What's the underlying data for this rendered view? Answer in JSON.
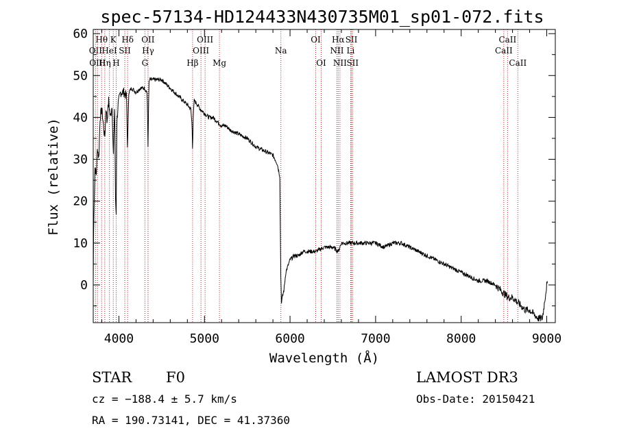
{
  "chart_data": {
    "type": "line",
    "title": "spec-57134-HD124433N430735M01_sp01-072.fits",
    "xlabel": "Wavelength (Å)",
    "ylabel": "Flux (relative)",
    "xlim": [
      3700,
      9100
    ],
    "ylim": [
      -9,
      61
    ],
    "xticks": [
      4000,
      5000,
      6000,
      7000,
      8000,
      9000
    ],
    "yticks": [
      0,
      10,
      20,
      30,
      40,
      50,
      60
    ],
    "line_color": "#000000",
    "marker_color": "#b22222",
    "grid": false,
    "spectrum_anchors": {
      "x": [
        3700,
        3705,
        3720,
        3735,
        3750,
        3765,
        3780,
        3800,
        3820,
        3835,
        3850,
        3860,
        3880,
        3890,
        3900,
        3920,
        3935,
        3950,
        3960,
        3968,
        3975,
        3990,
        4020,
        4060,
        4090,
        4101,
        4115,
        4150,
        4200,
        4250,
        4300,
        4330,
        4340,
        4350,
        4360,
        4400,
        4450,
        4500,
        4550,
        4600,
        4650,
        4700,
        4750,
        4800,
        4840,
        4855,
        4861,
        4868,
        4880,
        4920,
        4950,
        5000,
        5050,
        5100,
        5150,
        5200,
        5250,
        5300,
        5400,
        5500,
        5600,
        5700,
        5800,
        5850,
        5880,
        5892,
        5900,
        5910,
        5930,
        5950,
        6000,
        6050,
        6100,
        6150,
        6200,
        6300,
        6400,
        6500,
        6563,
        6600,
        6700,
        6800,
        6900,
        7000,
        7100,
        7200,
        7300,
        7400,
        7500,
        7600,
        7700,
        7800,
        7900,
        8000,
        8100,
        8200,
        8300,
        8400,
        8450,
        8500,
        8550,
        8600,
        8650,
        8700,
        8750,
        8800,
        8850,
        8900,
        8950,
        9000,
        9010
      ],
      "y": [
        0,
        15,
        28,
        26,
        33,
        30,
        40,
        42,
        38,
        35,
        43,
        39,
        44,
        42,
        40,
        43,
        30,
        44,
        20,
        17,
        38,
        43,
        46,
        46,
        45,
        32,
        46,
        47,
        46,
        47,
        47,
        46,
        33,
        48,
        49,
        49,
        49,
        49,
        48,
        47,
        46,
        45,
        44,
        43,
        42,
        38,
        32,
        40,
        44,
        43,
        42,
        41,
        40,
        40,
        39,
        38,
        38,
        37,
        36,
        35,
        33,
        32,
        31,
        29,
        26,
        2,
        -4,
        -3,
        -1,
        3,
        6,
        7,
        7,
        8,
        8,
        8,
        9,
        9,
        8,
        10,
        10,
        10,
        10,
        10,
        9,
        10,
        10,
        9,
        8,
        7,
        6,
        5,
        4,
        3,
        2,
        1,
        1,
        0,
        -1,
        -2,
        -3,
        -3,
        -4,
        -5,
        -6,
        -6,
        -7,
        -8,
        -8,
        0,
        0
      ]
    },
    "line_markers": [
      {
        "label": "Hθ",
        "wavelength": 3798,
        "row": 1
      },
      {
        "label": "K",
        "wavelength": 3934,
        "row": 1
      },
      {
        "label": "Hδ",
        "wavelength": 4102,
        "row": 1
      },
      {
        "label": "OII",
        "wavelength": 4340,
        "row": 1
      },
      {
        "label": "OIII",
        "wavelength": 5007,
        "row": 1
      },
      {
        "label": "OI",
        "wavelength": 6300,
        "row": 1
      },
      {
        "label": "Hα",
        "wavelength": 6563,
        "row": 1
      },
      {
        "label": "SII",
        "wavelength": 6717,
        "row": 1
      },
      {
        "label": "CaII",
        "wavelength": 8542,
        "row": 1
      },
      {
        "label": "OII",
        "wavelength": 3727,
        "row": 2
      },
      {
        "label": "HeI",
        "wavelength": 3889,
        "row": 2
      },
      {
        "label": "SII",
        "wavelength": 4069,
        "row": 2
      },
      {
        "label": "Hγ",
        "wavelength": 4341,
        "row": 2
      },
      {
        "label": "OIII",
        "wavelength": 4959,
        "row": 2
      },
      {
        "label": "Na",
        "wavelength": 5893,
        "row": 2
      },
      {
        "label": "NII",
        "wavelength": 6548,
        "row": 2
      },
      {
        "label": "Li",
        "wavelength": 6708,
        "row": 2
      },
      {
        "label": "CaII",
        "wavelength": 8498,
        "row": 2
      },
      {
        "label": "OIII",
        "wavelength": 3750,
        "row": 3
      },
      {
        "label": "Hη",
        "wavelength": 3835,
        "row": 3
      },
      {
        "label": "H",
        "wavelength": 3968,
        "row": 3
      },
      {
        "label": "G",
        "wavelength": 4304,
        "row": 3
      },
      {
        "label": "Hβ",
        "wavelength": 4861,
        "row": 3
      },
      {
        "label": "Mg",
        "wavelength": 5175,
        "row": 3
      },
      {
        "label": "OI",
        "wavelength": 6364,
        "row": 3
      },
      {
        "label": "NII",
        "wavelength": 6583,
        "row": 3
      },
      {
        "label": "SII",
        "wavelength": 6731,
        "row": 3
      },
      {
        "label": "CaII",
        "wavelength": 8662,
        "row": 3
      }
    ]
  },
  "info": {
    "object_class": "STAR",
    "subclass": "F0",
    "survey": "LAMOST DR3",
    "redshift_line": "cz = −188.4 ± 5.7 km/s",
    "obs_date": "Obs-Date: 20150421",
    "coords": "RA = 190.73141, DEC =  41.37360"
  }
}
